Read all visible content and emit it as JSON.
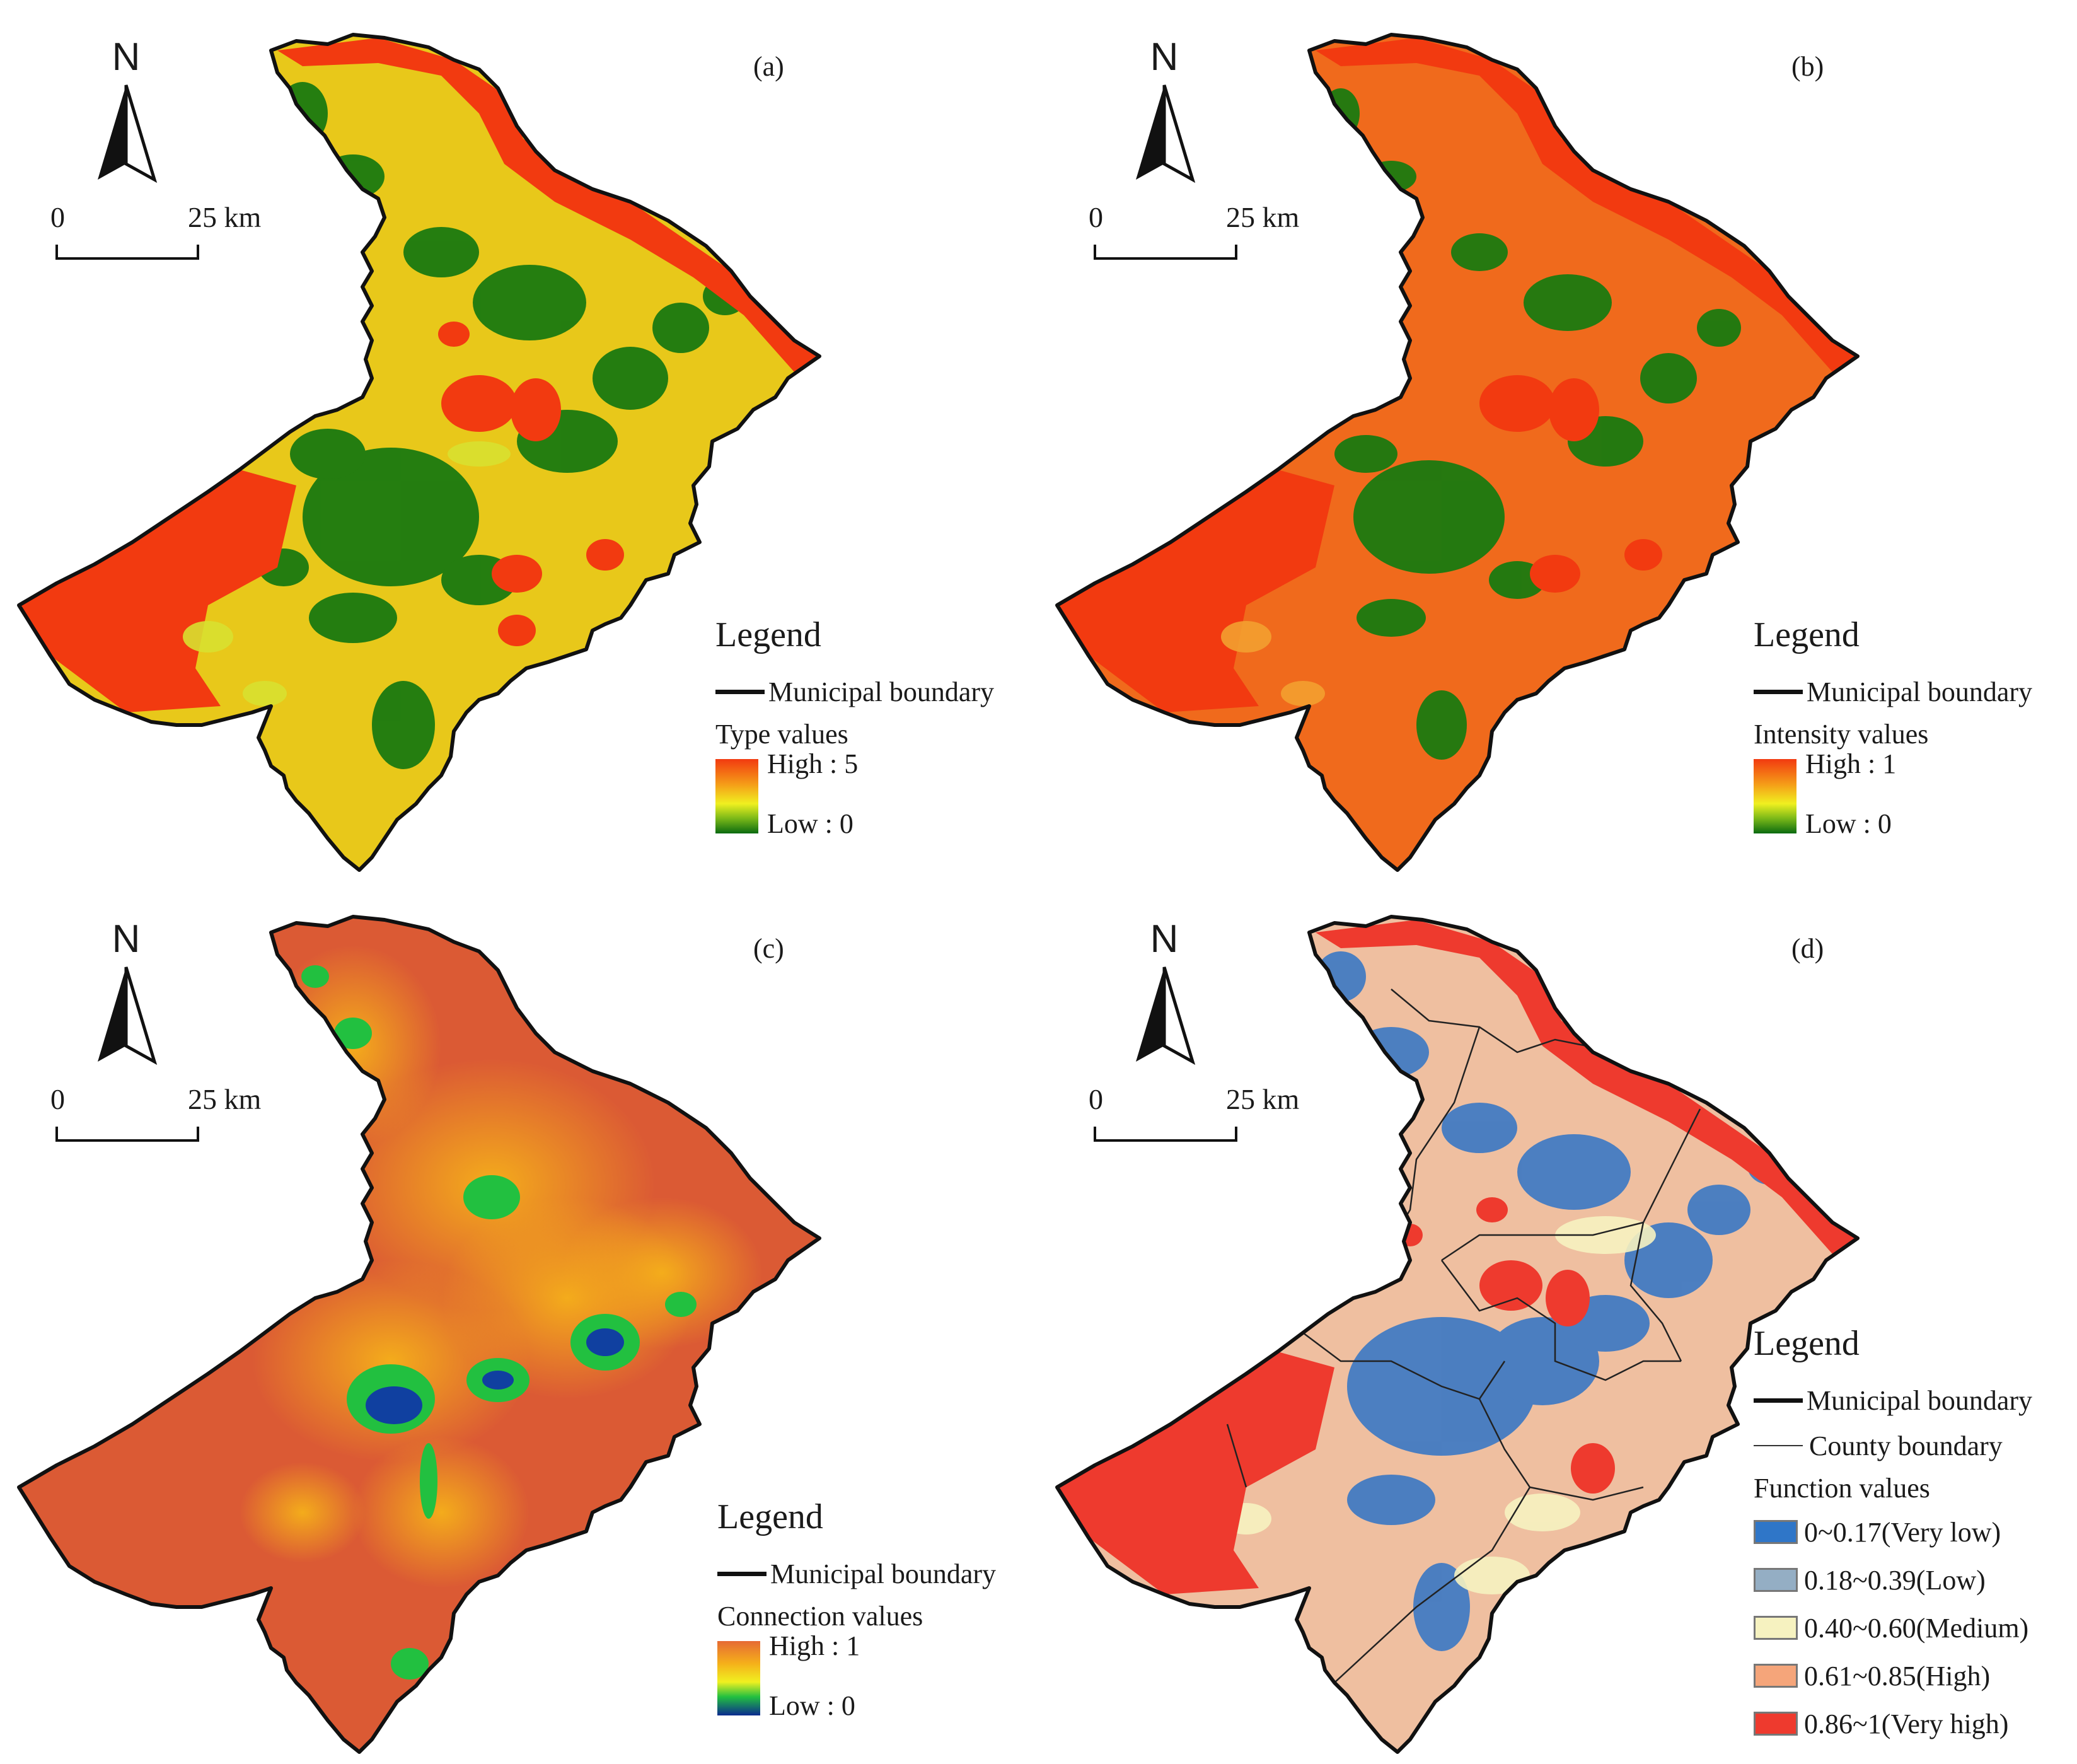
{
  "panels": [
    {
      "label": "(a)",
      "north": "N",
      "scale": {
        "start": "0",
        "end": "25 km"
      },
      "legend": {
        "title": "Legend",
        "boundary": "Municipal boundary",
        "value_title": "Type values",
        "high": "High : 5",
        "low": "Low : 0"
      },
      "colors": {
        "base": "#e8c81a",
        "green": "#1a7a10",
        "red": "#f23a10",
        "light": "#d8e030"
      }
    },
    {
      "label": "(b)",
      "north": "N",
      "scale": {
        "start": "0",
        "end": "25 km"
      },
      "legend": {
        "title": "Legend",
        "boundary": "Municipal boundary",
        "value_title": "Intensity values",
        "high": "High : 1",
        "low": "Low : 0"
      },
      "colors": {
        "base": "#f06a1c",
        "green": "#1a7a10",
        "red": "#f23a10",
        "light": "#f3a030"
      }
    },
    {
      "label": "(c)",
      "north": "N",
      "scale": {
        "start": "0",
        "end": "25 km"
      },
      "legend": {
        "title": "Legend",
        "boundary": "Municipal boundary",
        "value_title": "Connection values",
        "high": "High : 1",
        "low": "Low : 0"
      },
      "colors": {
        "base": "#db5a34",
        "yellow": "#f5b01a",
        "green": "#22c040",
        "blue": "#1040a0"
      }
    },
    {
      "label": "(d)",
      "north": "N",
      "scale": {
        "start": "0",
        "end": "25 km"
      },
      "legend": {
        "title": "Legend",
        "boundary": "Municipal boundary",
        "county": "County boundary",
        "value_title": "Function values",
        "classes": [
          {
            "label": "0~0.17(Very low)",
            "color": "#2f76c8"
          },
          {
            "label": "0.18~0.39(Low)",
            "color": "#94aec4"
          },
          {
            "label": "0.40~0.60(Medium)",
            "color": "#f6f2c0"
          },
          {
            "label": "0.61~0.85(High)",
            "color": "#f5a57a"
          },
          {
            "label": "0.86~1(Very high)",
            "color": "#ee3a2e"
          }
        ]
      },
      "colors": {
        "base": "#efbfa0",
        "blue": "#3a78c4",
        "red": "#ee3a2e",
        "cream": "#f6f2c0"
      }
    }
  ]
}
